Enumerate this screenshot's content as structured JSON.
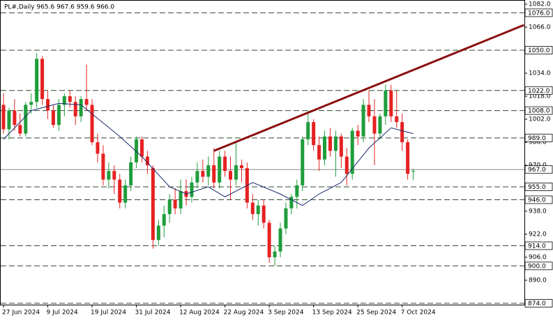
{
  "chart_data": {
    "type": "candlestick",
    "title": "PL#,Daily  965.6 967.6 959.6 966.0",
    "categories": [
      "27 Jun 2024",
      null,
      null,
      null,
      null,
      null,
      null,
      null,
      "9 Jul 2024",
      null,
      null,
      null,
      null,
      null,
      null,
      null,
      "19 Jul 2024",
      null,
      null,
      null,
      null,
      null,
      null,
      null,
      "31 Jul 2024",
      null,
      null,
      null,
      null,
      null,
      null,
      null,
      "12 Aug 2024",
      null,
      null,
      null,
      null,
      null,
      null,
      null,
      "22 Aug 2024",
      null,
      null,
      null,
      null,
      null,
      null,
      null,
      "3 Sep 2024",
      null,
      null,
      null,
      null,
      null,
      null,
      null,
      "13 Sep 2024",
      null,
      null,
      null,
      null,
      null,
      null,
      null,
      "25 Sep 2024",
      null,
      null,
      null,
      null,
      null,
      null,
      null,
      "7 Oct 2024",
      null,
      null
    ],
    "open": [
      1012,
      995,
      1008,
      998,
      992,
      1012,
      1014,
      1044,
      1016,
      1008,
      998,
      1012,
      1018,
      1014,
      1004,
      1016,
      1012,
      986,
      978,
      960,
      966,
      960,
      944,
      956,
      972,
      988,
      976,
      968,
      918,
      928,
      936,
      946,
      940,
      952,
      948,
      958,
      966,
      962,
      970,
      958,
      976,
      966,
      960,
      970,
      968,
      944,
      936,
      942,
      930,
      906,
      910,
      926,
      940,
      948,
      956,
      988,
      1000,
      984,
      974,
      990,
      980,
      990,
      976,
      964,
      994,
      990,
      1012,
      1004,
      992,
      1004,
      1022,
      1004,
      1000,
      986,
      965.6
    ],
    "high": [
      1020,
      1010,
      1016,
      1006,
      1014,
      1020,
      1048,
      1046,
      1022,
      1012,
      1016,
      1020,
      1022,
      1018,
      1018,
      1040,
      1016,
      992,
      984,
      972,
      970,
      964,
      960,
      976,
      990,
      990,
      980,
      970,
      932,
      942,
      950,
      954,
      960,
      960,
      962,
      972,
      974,
      976,
      982,
      980,
      980,
      976,
      986,
      974,
      972,
      950,
      946,
      946,
      932,
      914,
      930,
      944,
      950,
      960,
      990,
      1008,
      1002,
      990,
      994,
      996,
      994,
      992,
      982,
      996,
      998,
      1016,
      1022,
      1016,
      1006,
      1026,
      1026,
      1022,
      1006,
      988,
      967.6
    ],
    "low": [
      992,
      988,
      994,
      990,
      990,
      1006,
      1010,
      1012,
      1002,
      996,
      994,
      1004,
      1010,
      998,
      1000,
      1008,
      984,
      972,
      956,
      954,
      950,
      940,
      940,
      952,
      968,
      972,
      964,
      912,
      914,
      920,
      930,
      936,
      936,
      942,
      944,
      954,
      958,
      956,
      954,
      954,
      962,
      946,
      956,
      958,
      940,
      932,
      928,
      926,
      902,
      900,
      906,
      922,
      936,
      940,
      952,
      984,
      980,
      966,
      970,
      976,
      962,
      968,
      956,
      960,
      984,
      986,
      1000,
      970,
      988,
      998,
      1000,
      996,
      980,
      960,
      959.6
    ],
    "close": [
      995,
      1008,
      998,
      992,
      1012,
      1014,
      1044,
      1016,
      1008,
      998,
      1012,
      1018,
      1014,
      1004,
      1016,
      1012,
      986,
      978,
      960,
      966,
      960,
      944,
      956,
      972,
      988,
      976,
      970,
      918,
      928,
      936,
      946,
      940,
      952,
      948,
      958,
      966,
      962,
      970,
      958,
      976,
      966,
      960,
      970,
      968,
      944,
      936,
      942,
      930,
      906,
      910,
      926,
      940,
      948,
      956,
      988,
      1000,
      984,
      974,
      990,
      980,
      990,
      976,
      964,
      994,
      990,
      1012,
      1004,
      992,
      1004,
      1022,
      1004,
      1000,
      986,
      964,
      966.0
    ],
    "up_color": "#1f9d3b",
    "down_color": "#e52222",
    "ma": {
      "x": [
        0,
        5,
        10,
        14,
        21,
        25,
        30,
        33,
        37,
        40,
        45,
        50,
        54,
        57,
        61,
        66,
        70,
        74
      ],
      "values": [
        988,
        1008,
        1013,
        1012,
        990,
        976,
        955,
        950,
        955,
        948,
        958,
        950,
        942,
        950,
        958,
        982,
        996,
        992
      ],
      "color": "#1a2a6c"
    },
    "trendline": {
      "x": [
        38,
        94
      ],
      "values": [
        980,
        1067.5
      ],
      "color": "#8b0f0f"
    },
    "levels": [
      {
        "value": 1076,
        "label": "1076.0"
      },
      {
        "value": 1050,
        "label": "1050.0"
      },
      {
        "value": 1022,
        "label": "1022.0"
      },
      {
        "value": 1008,
        "label": "1008.0"
      },
      {
        "value": 989,
        "label": "989.0"
      },
      {
        "value": 955,
        "label": "955.0"
      },
      {
        "value": 946,
        "label": "946.0"
      },
      {
        "value": 914,
        "label": "914.0"
      },
      {
        "value": 900,
        "label": "900.0"
      },
      {
        "value": 874,
        "label": "874.0"
      }
    ],
    "price_line": {
      "value": 967,
      "label": "967.0"
    },
    "ylim": [
      874,
      1082
    ],
    "yticks": [
      {
        "value": 1082,
        "label": "1082.0"
      },
      {
        "value": 1066,
        "label": "1066.0"
      },
      {
        "value": 1034,
        "label": "1034.0"
      },
      {
        "value": 1018,
        "label": "1018.0"
      },
      {
        "value": 1002,
        "label": "1002.0"
      },
      {
        "value": 986,
        "label": "986.0"
      },
      {
        "value": 970,
        "label": "970.0"
      },
      {
        "value": 938,
        "label": "938.0"
      },
      {
        "value": 922,
        "label": "922.0"
      },
      {
        "value": 906,
        "label": "906.0"
      },
      {
        "value": 890,
        "label": "890.0"
      }
    ]
  }
}
